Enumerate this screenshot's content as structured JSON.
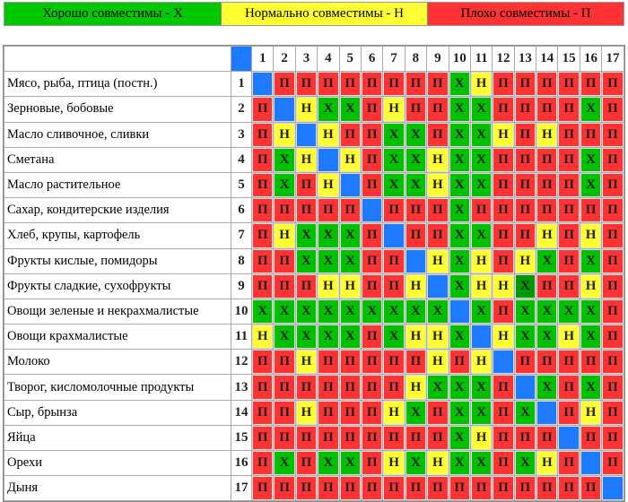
{
  "legend": [
    {
      "label": "Хорошо совместимы - Х",
      "color": "#00c800"
    },
    {
      "label": "Нормально совместимы - Н",
      "color": "#ffff33"
    },
    {
      "label": "Плохо совместимы - П",
      "color": "#ff3333"
    }
  ],
  "colors": {
    "Х": "#00c000",
    "Н": "#ffff33",
    "П": "#ff3333",
    "diagonal": "#1e7bff",
    "highlight": "#009900"
  },
  "columns": [
    "1",
    "2",
    "3",
    "4",
    "5",
    "6",
    "7",
    "8",
    "9",
    "10",
    "11",
    "12",
    "13",
    "14",
    "15",
    "16",
    "17"
  ],
  "rows": [
    {
      "label": "Мясо, рыба, птица (постн.)",
      "num": "1",
      "cells": [
        "",
        "П",
        "П",
        "П",
        "П",
        "П",
        "П",
        "П",
        "П",
        "Х",
        "Н",
        "П",
        "П",
        "П",
        "П",
        "П",
        "П"
      ]
    },
    {
      "label": "Зерновые, бобовые",
      "num": "2",
      "cells": [
        "П",
        "",
        "Н",
        "Х",
        "Х",
        "П",
        "Н",
        "П",
        "П",
        "Х",
        "Х",
        "П",
        "П",
        "П",
        "П",
        "Х",
        "П"
      ]
    },
    {
      "label": "Масло сливочное, сливки",
      "num": "3",
      "cells": [
        "П",
        "Н",
        "",
        "Н",
        "П",
        "П",
        "Х",
        "Х",
        "П",
        "Х",
        "Х",
        "Н",
        "П",
        "Н",
        "П",
        "П",
        "П"
      ]
    },
    {
      "label": "Сметана",
      "num": "4",
      "cells": [
        "П",
        "Х",
        "Н",
        "",
        "Н",
        "П",
        "Х",
        "Х",
        "Н",
        "Х",
        "Х",
        "П",
        "П",
        "П",
        "П",
        "Х",
        "П"
      ]
    },
    {
      "label": "Масло растительное",
      "num": "5",
      "cells": [
        "П",
        "Х",
        "П",
        "Н",
        "",
        "П",
        "Х",
        "Х",
        "Н",
        "Х",
        "Х",
        "П",
        "П",
        "П",
        "П",
        "Х",
        "П"
      ]
    },
    {
      "label": "Сахар, кондитерские изделия",
      "num": "6",
      "cells": [
        "П",
        "П",
        "П",
        "П",
        "П",
        "",
        "П",
        "П",
        "П",
        "Х",
        "П",
        "П",
        "П",
        "П",
        "П",
        "П",
        "П"
      ]
    },
    {
      "label": "Хлеб, крупы, картофель",
      "num": "7",
      "cells": [
        "П",
        "Н",
        "Х",
        "Х",
        "Х",
        "П",
        "",
        "П",
        "П",
        "Х",
        "Х",
        "П",
        "П",
        "Н",
        "П",
        "Н",
        "П"
      ]
    },
    {
      "label": "Фрукты кислые, помидоры",
      "num": "8",
      "cells": [
        "П",
        "П",
        "Х",
        "Х",
        "Х",
        "П",
        "П",
        "",
        "Н",
        "Х",
        "Н",
        "П",
        "Н",
        "Х",
        "П",
        "Х",
        "П"
      ]
    },
    {
      "label": "Фрукты сладкие, сухофрукты",
      "num": "9",
      "cells": [
        "П",
        "П",
        "П",
        "Н",
        "Н",
        "П",
        "П",
        "Н",
        "",
        "Х",
        "Н",
        "Н",
        "Х",
        "П",
        "П",
        "Н",
        "П"
      ],
      "highlight": [
        12
      ]
    },
    {
      "label": "Овощи зеленые и некрахмалистые",
      "num": "10",
      "cells": [
        "Х",
        "Х",
        "Х",
        "Х",
        "Х",
        "Х",
        "Х",
        "Х",
        "Х",
        "",
        "Х",
        "П",
        "Х",
        "Х",
        "Х",
        "Х",
        "П"
      ]
    },
    {
      "label": "Овощи крахмалистые",
      "num": "11",
      "cells": [
        "Н",
        "Х",
        "Х",
        "Х",
        "Х",
        "П",
        "Х",
        "Н",
        "Н",
        "Х",
        "",
        "Н",
        "Х",
        "Х",
        "Н",
        "Х",
        "П"
      ]
    },
    {
      "label": "Молоко",
      "num": "12",
      "cells": [
        "П",
        "П",
        "Н",
        "П",
        "П",
        "П",
        "П",
        "П",
        "Н",
        "П",
        "Н",
        "",
        "П",
        "П",
        "П",
        "П",
        "П"
      ]
    },
    {
      "label": "Творог, кисломолочные продукты",
      "num": "13",
      "cells": [
        "П",
        "П",
        "П",
        "П",
        "П",
        "П",
        "П",
        "Н",
        "Х",
        "Х",
        "Х",
        "П",
        "",
        "Х",
        "П",
        "Х",
        "П"
      ]
    },
    {
      "label": "Сыр, брынза",
      "num": "14",
      "cells": [
        "П",
        "П",
        "Н",
        "П",
        "П",
        "П",
        "Н",
        "Х",
        "П",
        "Х",
        "Х",
        "П",
        "Х",
        "",
        "П",
        "Н",
        "П"
      ]
    },
    {
      "label": "Яйца",
      "num": "15",
      "cells": [
        "П",
        "П",
        "П",
        "П",
        "П",
        "П",
        "П",
        "П",
        "П",
        "Х",
        "Н",
        "П",
        "П",
        "П",
        "",
        "П",
        "П"
      ]
    },
    {
      "label": "Орехи",
      "num": "16",
      "cells": [
        "П",
        "Х",
        "П",
        "Х",
        "Х",
        "П",
        "Н",
        "Х",
        "Н",
        "Х",
        "Х",
        "П",
        "Х",
        "Н",
        "П",
        "",
        "П"
      ]
    },
    {
      "label": "Дыня",
      "num": "17",
      "cells": [
        "П",
        "П",
        "П",
        "П",
        "П",
        "П",
        "П",
        "П",
        "П",
        "П",
        "П",
        "П",
        "П",
        "П",
        "П",
        "П",
        ""
      ]
    }
  ]
}
